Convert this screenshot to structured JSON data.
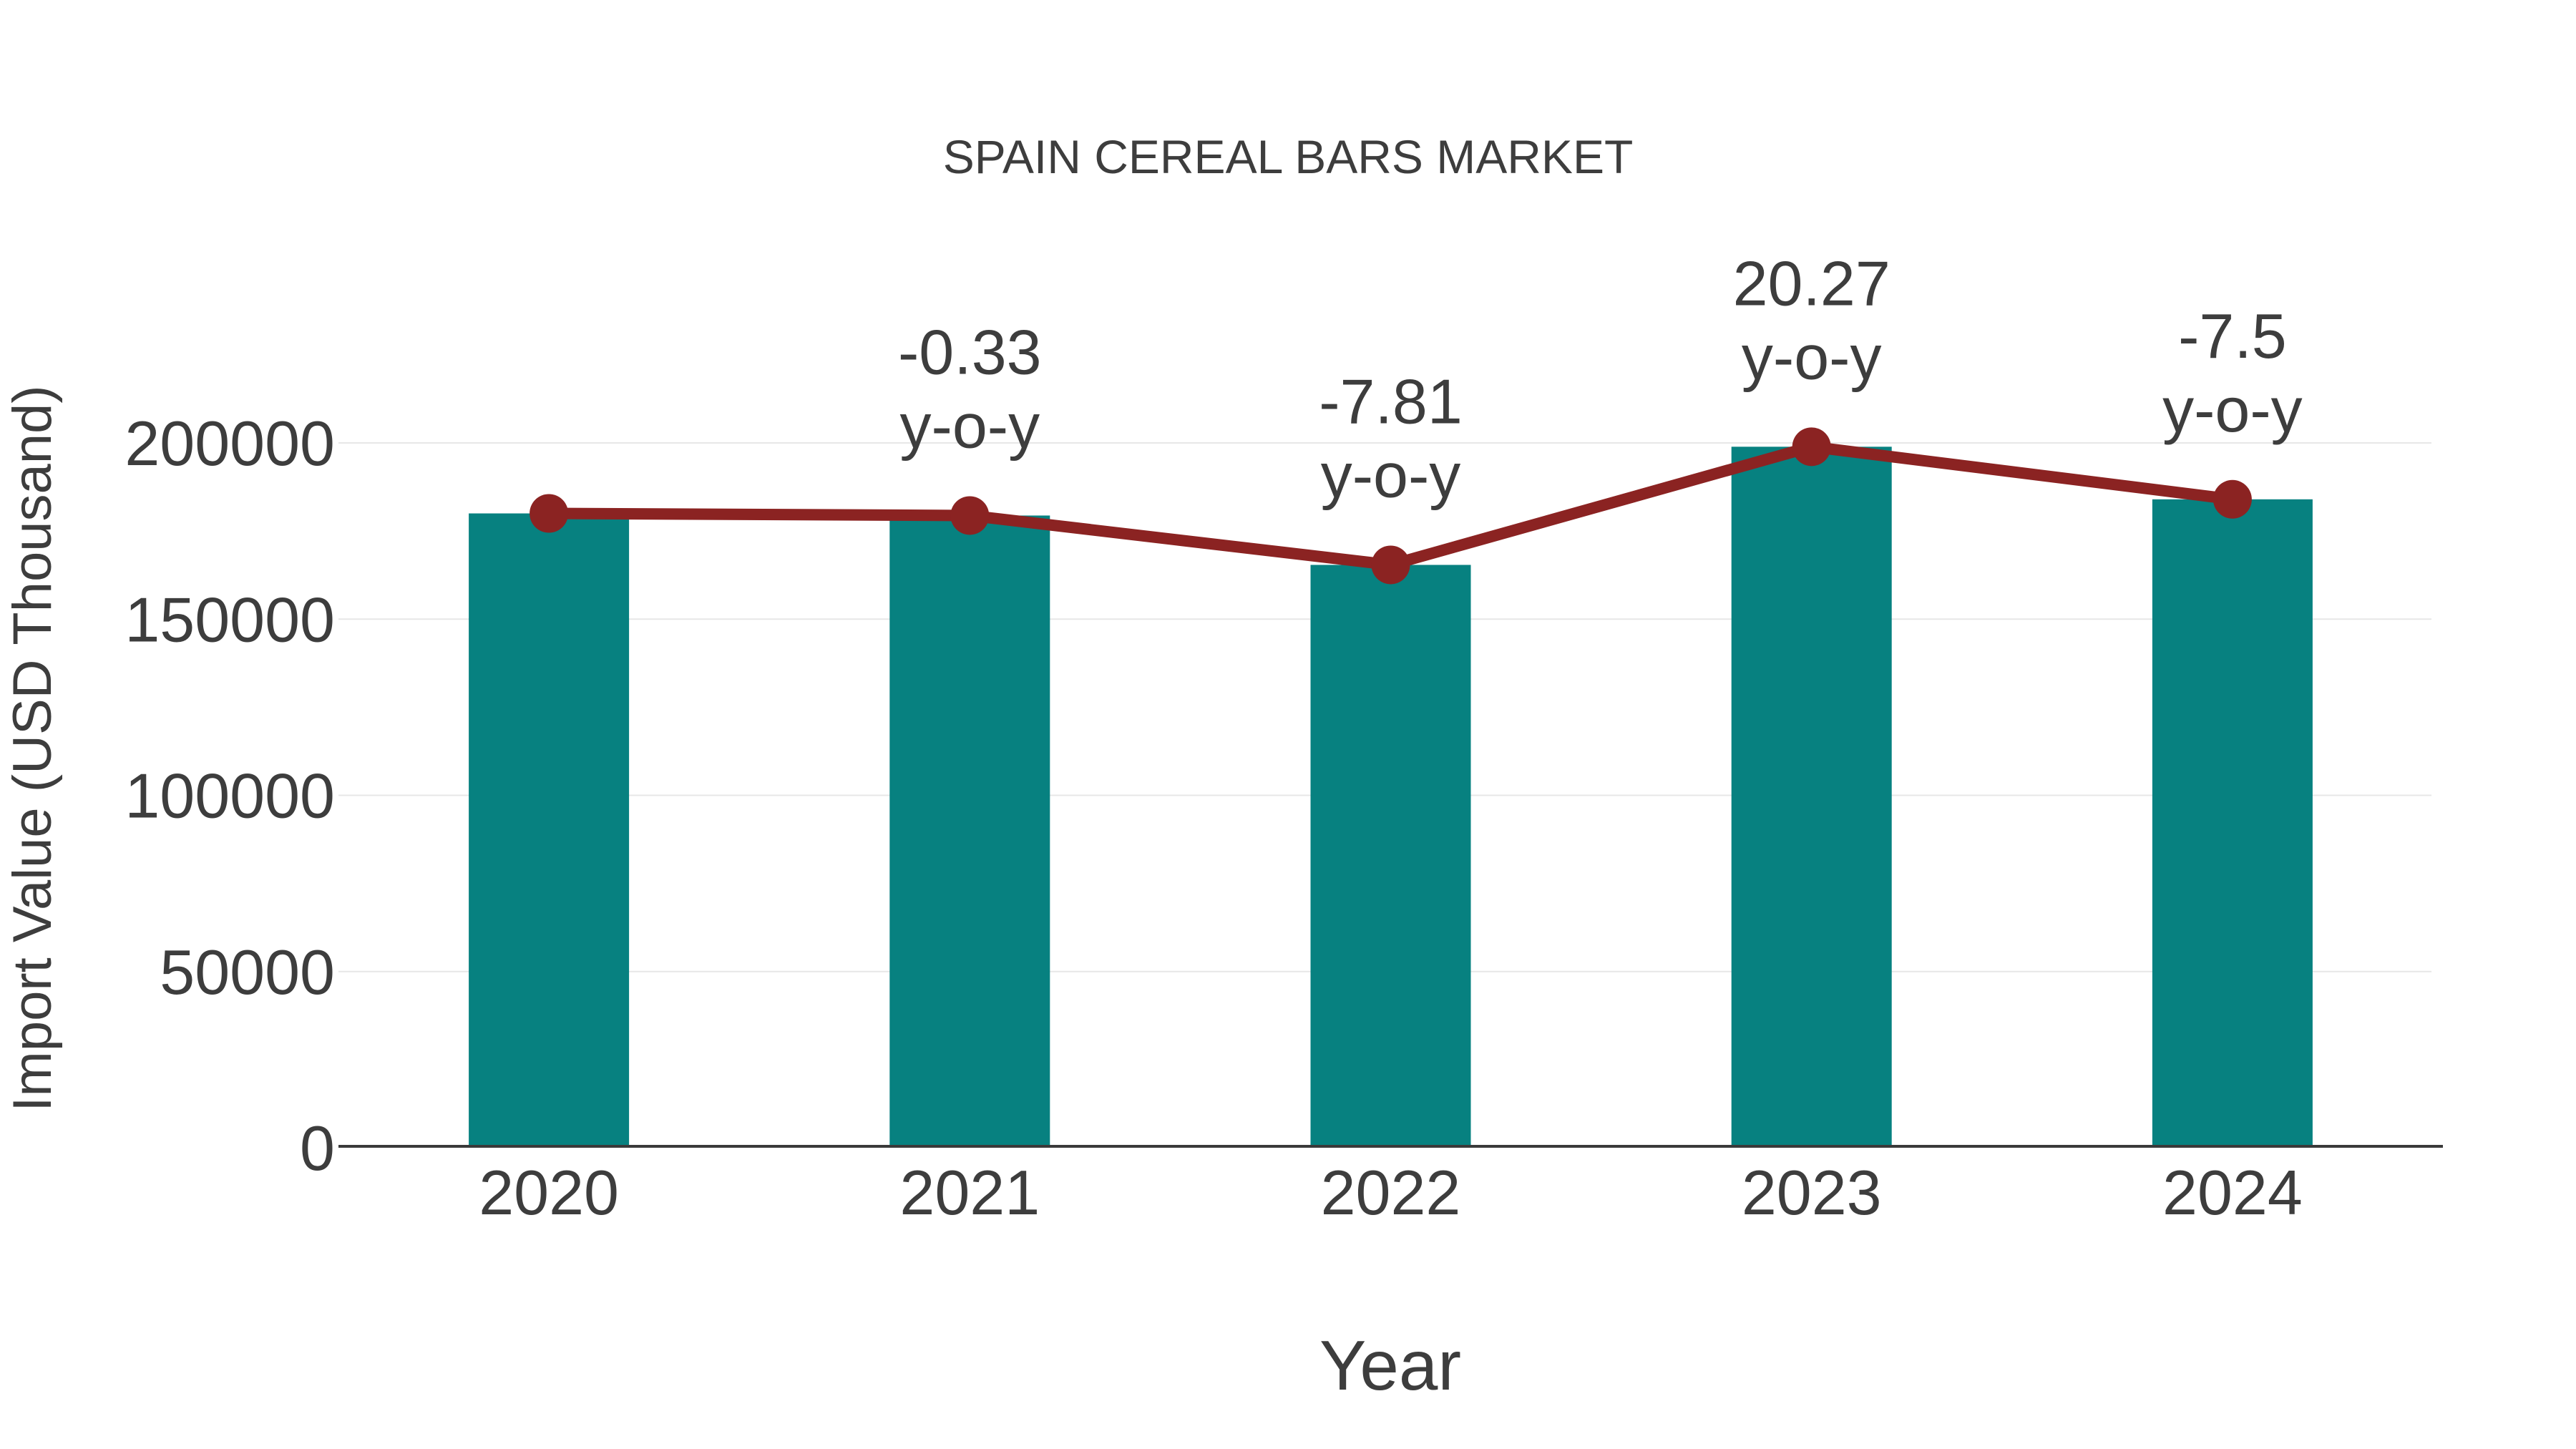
{
  "chart_data": {
    "type": "bar",
    "title": "SPAIN CEREAL BARS MARKET",
    "xlabel": "Year",
    "ylabel": "Import Value (USD Thousand)",
    "categories": [
      "2020",
      "2021",
      "2022",
      "2023",
      "2024"
    ],
    "series": [
      {
        "name": "Import Value (USD Thousand)",
        "type": "bar",
        "color": "#078180",
        "values": [
          180000,
          179400,
          165390,
          198920,
          184000
        ]
      },
      {
        "name": "y-o-y trend line",
        "type": "line",
        "color": "#8b2322",
        "values": [
          180000,
          179400,
          165390,
          198920,
          184000
        ]
      }
    ],
    "yoy_percent": [
      null,
      -0.33,
      -7.81,
      20.27,
      -7.5
    ],
    "annotations": [
      {
        "category": "2021",
        "lines": [
          "-0.33",
          "y-o-y"
        ]
      },
      {
        "category": "2022",
        "lines": [
          "-7.81",
          "y-o-y"
        ]
      },
      {
        "category": "2023",
        "lines": [
          "20.27",
          "y-o-y"
        ]
      },
      {
        "category": "2024",
        "lines": [
          "-7.5",
          "y-o-y"
        ]
      }
    ],
    "yticks": [
      "0",
      "50000",
      "100000",
      "150000",
      "200000"
    ],
    "ylim": [
      0,
      200000
    ],
    "grid": true,
    "legend_position": "none",
    "colors": {
      "bar": "#078180",
      "line": "#8b2322",
      "marker": "#8b2322",
      "text": "#3d3d3d",
      "gridline": "#e7e7e7",
      "axis_line": "#3a3a3a",
      "background": "#ffffff"
    }
  }
}
